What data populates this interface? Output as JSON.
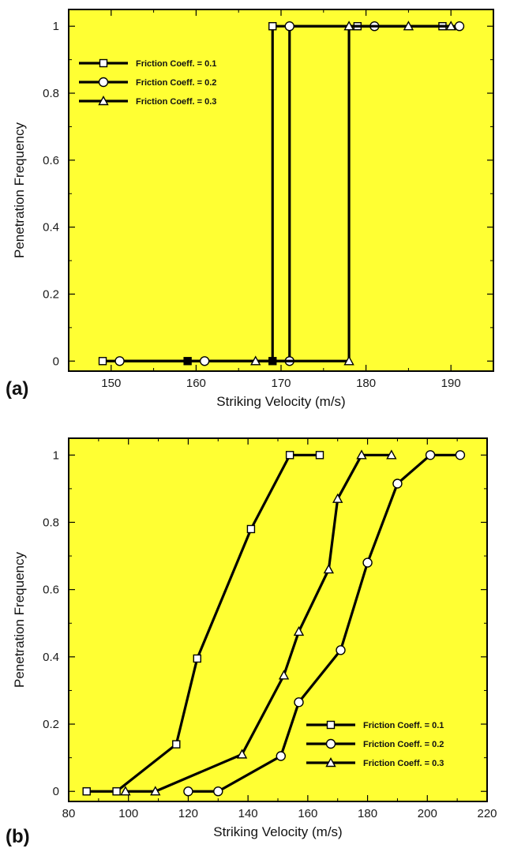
{
  "chart_data": [
    {
      "type": "line",
      "panel_label": "(a)",
      "xlabel": "Striking Velocity (m/s)",
      "ylabel": "Penetration Frequency",
      "xlim": [
        145,
        195
      ],
      "ylim": [
        -0.03,
        1.05
      ],
      "xticks": [
        150,
        160,
        170,
        180,
        190
      ],
      "yticks": [
        0,
        0.2,
        0.4,
        0.6,
        0.8,
        1
      ],
      "grid": false,
      "legend_position": "upper-left",
      "background_color": "#ffff33",
      "line_color": "#000000",
      "series": [
        {
          "name": "Friction Coeff. = 0.1",
          "marker": "square",
          "points": [
            [
              149,
              0
            ],
            [
              159,
              0
            ],
            [
              169,
              0
            ],
            [
              169,
              1
            ],
            [
              179,
              1
            ],
            [
              189,
              1
            ]
          ],
          "marker_points": [
            [
              149,
              0
            ],
            [
              159,
              0
            ],
            [
              169,
              0
            ],
            [
              169,
              1
            ],
            [
              179,
              1
            ],
            [
              189,
              1
            ]
          ],
          "filled_markers": [
            [
              159,
              0
            ],
            [
              169,
              0
            ]
          ]
        },
        {
          "name": "Friction Coeff. = 0.2",
          "marker": "circle",
          "points": [
            [
              151,
              0
            ],
            [
              161,
              0
            ],
            [
              171,
              0
            ],
            [
              171,
              1
            ],
            [
              181,
              1
            ],
            [
              191,
              1
            ]
          ],
          "marker_points": [
            [
              151,
              0
            ],
            [
              161,
              0
            ],
            [
              171,
              0
            ],
            [
              171,
              1
            ],
            [
              181,
              1
            ],
            [
              191,
              1
            ]
          ],
          "filled_markers": []
        },
        {
          "name": "Friction Coeff. = 0.3",
          "marker": "triangle",
          "points": [
            [
              167,
              0
            ],
            [
              178,
              0
            ],
            [
              178,
              1
            ],
            [
              185,
              1
            ],
            [
              190,
              1
            ]
          ],
          "marker_points": [
            [
              167,
              0
            ],
            [
              178,
              0
            ],
            [
              178,
              1
            ],
            [
              185,
              1
            ],
            [
              190,
              1
            ]
          ],
          "filled_markers": []
        }
      ]
    },
    {
      "type": "line",
      "panel_label": "(b)",
      "xlabel": "Striking Velocity (m/s)",
      "ylabel": "Penetration Frequency",
      "xlim": [
        80,
        220
      ],
      "ylim": [
        -0.03,
        1.05
      ],
      "xticks": [
        80,
        100,
        120,
        140,
        160,
        180,
        200,
        220
      ],
      "yticks": [
        0,
        0.2,
        0.4,
        0.6,
        0.8,
        1
      ],
      "grid": false,
      "legend_position": "lower-right",
      "background_color": "#ffff33",
      "line_color": "#000000",
      "series": [
        {
          "name": "Friction Coeff. = 0.1",
          "marker": "square",
          "points": [
            [
              86,
              0
            ],
            [
              96,
              0
            ],
            [
              116,
              0.14
            ],
            [
              123,
              0.395
            ],
            [
              141,
              0.78
            ],
            [
              154,
              1
            ],
            [
              164,
              1
            ]
          ],
          "marker_points": [
            [
              86,
              0
            ],
            [
              96,
              0
            ],
            [
              116,
              0.14
            ],
            [
              123,
              0.395
            ],
            [
              141,
              0.78
            ],
            [
              154,
              1
            ],
            [
              164,
              1
            ]
          ],
          "filled_markers": []
        },
        {
          "name": "Friction Coeff. = 0.2",
          "marker": "circle",
          "points": [
            [
              120,
              0
            ],
            [
              130,
              0
            ],
            [
              151,
              0.105
            ],
            [
              157,
              0.265
            ],
            [
              171,
              0.42
            ],
            [
              180,
              0.68
            ],
            [
              190,
              0.915
            ],
            [
              201,
              1
            ],
            [
              211,
              1
            ]
          ],
          "marker_points": [
            [
              120,
              0
            ],
            [
              130,
              0
            ],
            [
              151,
              0.105
            ],
            [
              157,
              0.265
            ],
            [
              171,
              0.42
            ],
            [
              180,
              0.68
            ],
            [
              190,
              0.915
            ],
            [
              201,
              1
            ],
            [
              211,
              1
            ]
          ],
          "filled_markers": []
        },
        {
          "name": "Friction Coeff. = 0.3",
          "marker": "triangle",
          "points": [
            [
              99,
              0
            ],
            [
              109,
              0
            ],
            [
              138,
              0.11
            ],
            [
              152,
              0.345
            ],
            [
              157,
              0.475
            ],
            [
              167,
              0.66
            ],
            [
              170,
              0.87
            ],
            [
              178,
              1
            ],
            [
              188,
              1
            ]
          ],
          "marker_points": [
            [
              99,
              0
            ],
            [
              109,
              0
            ],
            [
              138,
              0.11
            ],
            [
              152,
              0.345
            ],
            [
              157,
              0.475
            ],
            [
              167,
              0.66
            ],
            [
              170,
              0.87
            ],
            [
              178,
              1
            ],
            [
              188,
              1
            ]
          ],
          "filled_markers": []
        }
      ]
    }
  ]
}
